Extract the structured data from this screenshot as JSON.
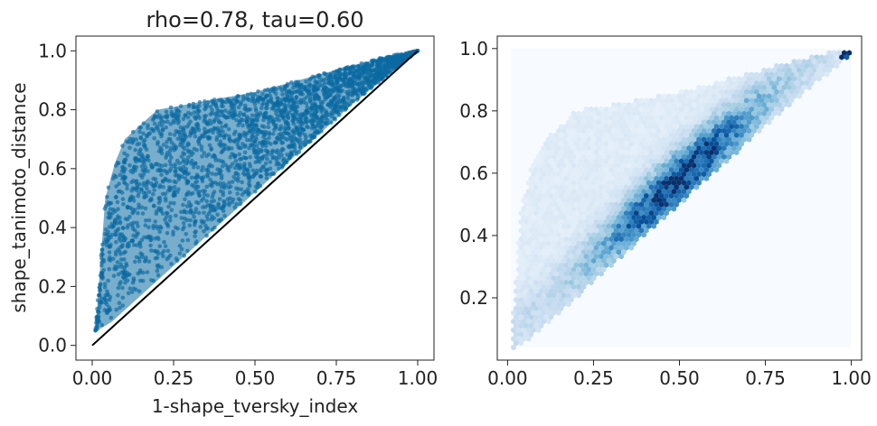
{
  "chart_data": [
    {
      "type": "scatter",
      "title": "rho=0.78, tau=0.60",
      "xlabel": "1-shape_tversky_index",
      "ylabel": "shape_tanimoto_distance",
      "xlim": [
        -0.05,
        1.05
      ],
      "ylim": [
        -0.05,
        1.05
      ],
      "xticks": [
        "0.00",
        "0.25",
        "0.50",
        "0.75",
        "1.00"
      ],
      "yticks": [
        "0.0",
        "0.2",
        "0.4",
        "0.6",
        "0.8",
        "1.0"
      ],
      "grid": false,
      "color": "#0a6aa1",
      "reference_line": {
        "x": [
          0,
          1
        ],
        "y": [
          0,
          1
        ],
        "color": "#000000"
      },
      "envelope": {
        "x_lower": [
          0.01,
          0.03,
          0.06,
          0.1,
          0.2,
          0.3,
          0.4,
          0.5,
          0.6,
          0.7,
          0.8,
          0.9,
          1.0
        ],
        "y_lower": [
          0.05,
          0.06,
          0.08,
          0.12,
          0.22,
          0.32,
          0.42,
          0.52,
          0.62,
          0.72,
          0.82,
          0.91,
          1.0
        ],
        "x_upper": [
          0.01,
          0.02,
          0.04,
          0.07,
          0.1,
          0.15,
          0.2,
          0.3,
          0.4,
          0.5,
          0.6,
          0.7,
          0.8,
          0.9,
          1.0
        ],
        "y_upper": [
          0.05,
          0.2,
          0.5,
          0.62,
          0.7,
          0.75,
          0.8,
          0.82,
          0.84,
          0.86,
          0.89,
          0.92,
          0.95,
          0.98,
          1.0
        ]
      }
    },
    {
      "type": "heatmap",
      "title": "",
      "xlabel": "",
      "ylabel": "",
      "xlim": [
        -0.03,
        1.03
      ],
      "ylim": [
        0.0,
        1.04
      ],
      "xticks": [
        "0.00",
        "0.25",
        "0.50",
        "0.75",
        "1.00"
      ],
      "yticks": [
        "0.2",
        "0.4",
        "0.6",
        "0.8",
        "1.0"
      ],
      "colormap": "Blues",
      "grid": false,
      "extent": {
        "x": [
          0.01,
          1.0
        ],
        "y": [
          0.04,
          1.0
        ]
      },
      "density_peak": {
        "x": 0.5,
        "y": 0.59
      }
    }
  ]
}
